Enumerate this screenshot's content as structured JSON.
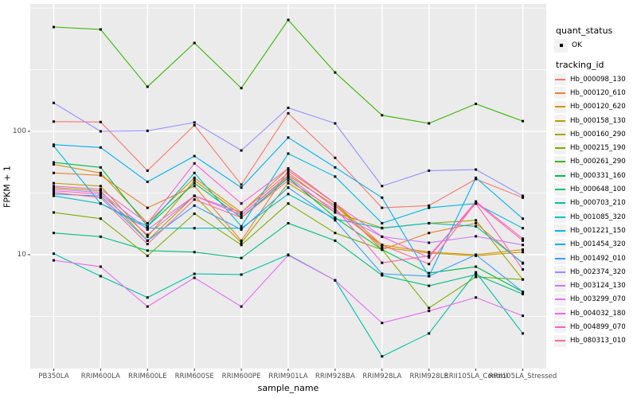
{
  "axes": {
    "y_label": "FPKM + 1",
    "x_label": "sample_name",
    "y_tick_labels": [
      "100",
      "10"
    ]
  },
  "legend": {
    "quant_status_title": "quant_status",
    "quant_status_items": [
      {
        "label": "OK",
        "marker": "black-point-icon"
      }
    ],
    "tracking_id_title": "tracking_id"
  },
  "colors": {
    "outer_bg": "#FFFFFF",
    "panel_bg": "#EBEBEB",
    "grid": "#FFFFFF",
    "tick": "#333333",
    "axis_text": "#4D4D4D",
    "marker": "#000000",
    "legend_key_bg": "#F2F2F2"
  },
  "chart_data": {
    "type": "line",
    "title": "",
    "xlabel": "sample_name",
    "ylabel": "FPKM + 1",
    "yscale": "log10",
    "ylim": [
      1.2,
      1030
    ],
    "grid": "on",
    "legend_position": "right",
    "point_marker": "small-black-square",
    "y_major_gridlines": [
      10,
      100
    ],
    "y_minor_gridlines": [
      3.162,
      31.62,
      316.2,
      1000
    ],
    "x": [
      "PB350LA",
      "RRIM600LA",
      "RRIM600LE",
      "RRIM600SE",
      "RRIM600PE",
      "RRIM901LA",
      "RRIM928BA",
      "RRIM928LA",
      "RRIM928LE",
      "RRII105LA_Control",
      "RRII105LA_Stressed"
    ],
    "series": [
      {
        "name": "Hb_000098_130",
        "color": "#F8766D",
        "values": [
          120,
          119,
          48,
          112,
          37,
          140,
          61,
          24,
          25,
          41,
          29
        ]
      },
      {
        "name": "Hb_000120_610",
        "color": "#EA8331",
        "values": [
          46,
          44,
          24,
          36,
          13,
          48,
          26,
          11,
          15,
          18,
          8.5
        ]
      },
      {
        "name": "Hb_000120_620",
        "color": "#D89000",
        "values": [
          54,
          46,
          18,
          42,
          22,
          50,
          26,
          12,
          10.5,
          10,
          11
        ]
      },
      {
        "name": "Hb_000158_130",
        "color": "#C09B00",
        "values": [
          38,
          36,
          14,
          40,
          21,
          44,
          25,
          11.5,
          10.3,
          9.8,
          10.5
        ]
      },
      {
        "name": "Hb_000160_290",
        "color": "#A3A500",
        "values": [
          35,
          33,
          13,
          30,
          12.5,
          38,
          22,
          16.5,
          18,
          19,
          6.3
        ]
      },
      {
        "name": "Hb_000215_190",
        "color": "#7CAE00",
        "values": [
          22,
          19.6,
          9.8,
          21.5,
          12,
          26,
          15,
          11,
          3.7,
          6.6,
          6.3
        ]
      },
      {
        "name": "Hb_000261_290",
        "color": "#39B600",
        "values": [
          700,
          670,
          230,
          520,
          224,
          800,
          300,
          135,
          116,
          167,
          121
        ]
      },
      {
        "name": "Hb_000331_160",
        "color": "#00BB4E",
        "values": [
          56,
          51,
          17,
          38,
          20,
          42,
          20,
          11,
          7.1,
          8,
          5
        ]
      },
      {
        "name": "Hb_000648_100",
        "color": "#00BF7D",
        "values": [
          15,
          14,
          10.8,
          10.5,
          9.4,
          18,
          13,
          6.8,
          5.6,
          6.9,
          4.8
        ]
      },
      {
        "name": "Hb_000703_210",
        "color": "#00C1A3",
        "values": [
          10.2,
          6.7,
          4.5,
          7,
          6.9,
          10,
          6.2,
          1.5,
          2.3,
          7.2,
          2.3
        ]
      },
      {
        "name": "Hb_001085_320",
        "color": "#00BFC4",
        "values": [
          30,
          26,
          16.4,
          16.4,
          16.4,
          31,
          19.5,
          16.4,
          18,
          17,
          8.6
        ]
      },
      {
        "name": "Hb_001221_150",
        "color": "#00BAE0",
        "values": [
          76,
          26,
          17,
          46,
          17,
          66,
          43,
          18,
          24,
          26,
          16.4
        ]
      },
      {
        "name": "Hb_001454_320",
        "color": "#00B0F6",
        "values": [
          78,
          74,
          39,
          63,
          35,
          89,
          51,
          29,
          6.7,
          42,
          19.6
        ]
      },
      {
        "name": "Hb_001492_010",
        "color": "#35A2FF",
        "values": [
          31,
          30,
          13,
          25,
          16,
          35,
          19,
          7,
          6.7,
          10,
          5
        ]
      },
      {
        "name": "Hb_002374_320",
        "color": "#9590FF",
        "values": [
          170,
          100,
          101,
          118,
          70,
          155,
          116,
          36,
          48,
          49,
          30
        ]
      },
      {
        "name": "Hb_003124_130",
        "color": "#C77CFF",
        "values": [
          34,
          32,
          16,
          30,
          21,
          43,
          22,
          14,
          12.5,
          14.1,
          12
        ]
      },
      {
        "name": "Hb_003299_070",
        "color": "#E76BF3",
        "values": [
          9,
          8,
          3.8,
          6.5,
          3.8,
          9.9,
          6.2,
          2.8,
          3.5,
          4.5,
          3.2
        ]
      },
      {
        "name": "Hb_004032_180",
        "color": "#FA62DB",
        "values": [
          36,
          34,
          18,
          55,
          26,
          50,
          26,
          14,
          9.5,
          27,
          13.5
        ]
      },
      {
        "name": "Hb_004899_070",
        "color": "#FF62BC",
        "values": [
          33,
          31,
          14.5,
          30,
          22,
          46,
          24,
          8.6,
          9.8,
          26,
          7.6
        ]
      },
      {
        "name": "Hb_080313_010",
        "color": "#FF6A98",
        "values": [
          32,
          29,
          12.2,
          28,
          20,
          40,
          23,
          12,
          8.4,
          26.5,
          13
        ]
      }
    ]
  }
}
